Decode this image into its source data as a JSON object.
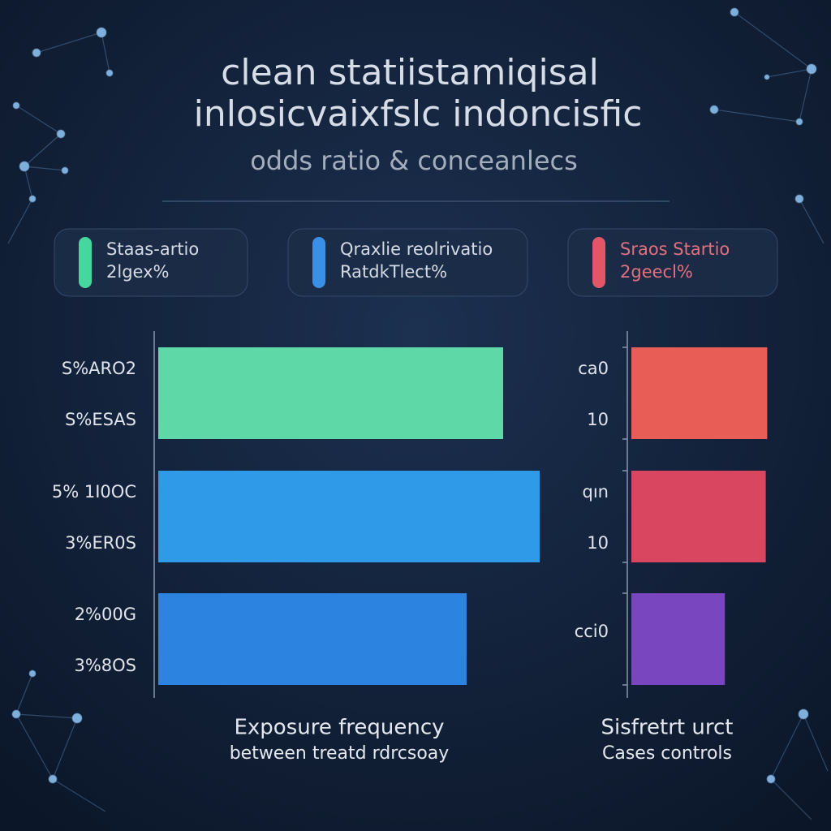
{
  "title": [
    "clean statiistamiqisal",
    "inlosicvaixfslc indoncisfic"
  ],
  "subtitle": "odds ratio & conceanlecs",
  "legend": [
    {
      "lines": [
        "Staas-artio",
        "2lgex%"
      ],
      "color": "#45d79e"
    },
    {
      "lines": [
        "Qraxlie reolrivatio",
        "RatdkTlect%"
      ],
      "color": "#3a8fe6"
    },
    {
      "lines": [
        "Sraos Startio",
        "2geecl%"
      ],
      "color": "#e25668"
    }
  ],
  "chart_data": [
    {
      "type": "hbar",
      "categories": [
        "S%ARO2",
        "5% 1I0OC",
        "2%00G"
      ],
      "sublabels": [
        "S%ESAS",
        "3%ER0S",
        "3%8OS"
      ],
      "values": [
        85,
        94,
        76
      ],
      "colors": [
        "#5fd8a8",
        "#2f9ae8",
        "#2c84e0"
      ],
      "xlim": [
        0,
        100
      ],
      "caption": [
        "Exposure frequency",
        "between treatd rdrcsoay"
      ]
    },
    {
      "type": "hbar",
      "categories": [
        "ca0",
        "qın",
        "cci0"
      ],
      "sublabels": [
        "10",
        "10",
        null
      ],
      "values": [
        93,
        92,
        64
      ],
      "colors": [
        "#e85e56",
        "#d8475f",
        "#7a46c0"
      ],
      "xlim": [
        0,
        100
      ],
      "caption": [
        "Sisfretrt urct",
        "Cases controls"
      ]
    }
  ]
}
